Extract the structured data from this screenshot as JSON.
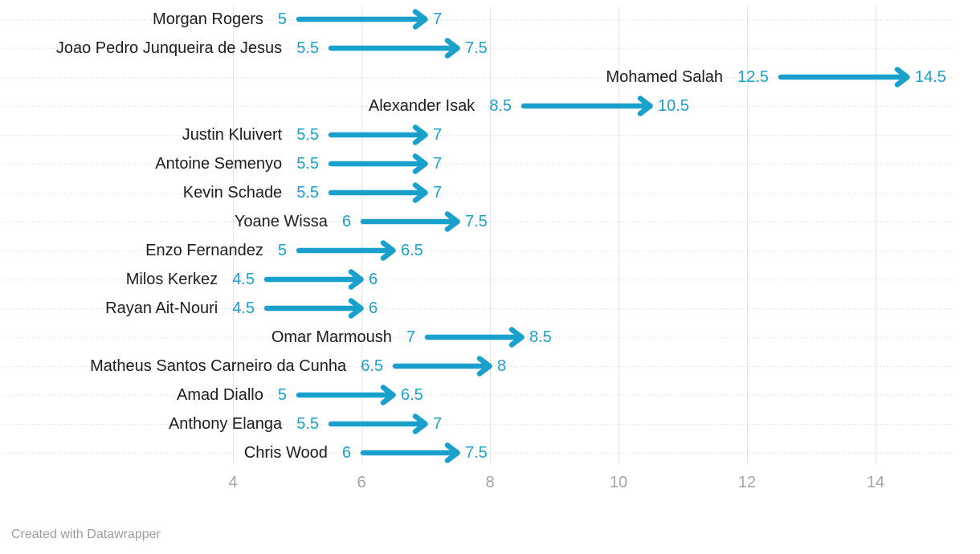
{
  "chart_data": {
    "type": "arrow",
    "title": "",
    "xlabel": "",
    "ylabel": "",
    "rows": [
      {
        "name": "Morgan Rogers",
        "start": 5,
        "end": 7,
        "start_label": "5",
        "end_label": "7"
      },
      {
        "name": "Joao Pedro Junqueira de Jesus",
        "start": 5.5,
        "end": 7.5,
        "start_label": "5.5",
        "end_label": "7.5"
      },
      {
        "name": "Mohamed Salah",
        "start": 12.5,
        "end": 14.5,
        "start_label": "12.5",
        "end_label": "14.5"
      },
      {
        "name": "Alexander Isak",
        "start": 8.5,
        "end": 10.5,
        "start_label": "8.5",
        "end_label": "10.5"
      },
      {
        "name": "Justin Kluivert",
        "start": 5.5,
        "end": 7,
        "start_label": "5.5",
        "end_label": "7"
      },
      {
        "name": "Antoine Semenyo",
        "start": 5.5,
        "end": 7,
        "start_label": "5.5",
        "end_label": "7"
      },
      {
        "name": "Kevin Schade",
        "start": 5.5,
        "end": 7,
        "start_label": "5.5",
        "end_label": "7"
      },
      {
        "name": "Yoane Wissa",
        "start": 6,
        "end": 7.5,
        "start_label": "6",
        "end_label": "7.5"
      },
      {
        "name": "Enzo Fernandez",
        "start": 5,
        "end": 6.5,
        "start_label": "5",
        "end_label": "6.5"
      },
      {
        "name": "Milos Kerkez",
        "start": 4.5,
        "end": 6,
        "start_label": "4.5",
        "end_label": "6"
      },
      {
        "name": "Rayan Ait-Nouri",
        "start": 4.5,
        "end": 6,
        "start_label": "4.5",
        "end_label": "6"
      },
      {
        "name": "Omar Marmoush",
        "start": 7,
        "end": 8.5,
        "start_label": "7",
        "end_label": "8.5"
      },
      {
        "name": "Matheus Santos Carneiro da Cunha",
        "start": 6.5,
        "end": 8,
        "start_label": "6.5",
        "end_label": "8"
      },
      {
        "name": "Amad Diallo",
        "start": 5,
        "end": 6.5,
        "start_label": "5",
        "end_label": "6.5"
      },
      {
        "name": "Anthony Elanga",
        "start": 5.5,
        "end": 7,
        "start_label": "5.5",
        "end_label": "7"
      },
      {
        "name": "Chris Wood",
        "start": 6,
        "end": 7.5,
        "start_label": "6",
        "end_label": "7.5"
      }
    ],
    "axis": {
      "ticks": [
        4,
        6,
        8,
        10,
        12,
        14
      ],
      "tick_labels": [
        "4",
        "6",
        "8",
        "10",
        "12",
        "14"
      ],
      "xlim": [
        3.6,
        15.6
      ],
      "grid": "vertical solid lines at ticks, horizontal dotted guide per row",
      "legend_position": "none"
    }
  },
  "colors": {
    "arrow": "#1AA0CD",
    "value_label": "#1AA0CD",
    "player_name": "#1D1D1D",
    "axis_label": "#A5A5A5",
    "vertical_gridline": "#E2E2E2",
    "dotted_gridline": "#D0D0D0",
    "credit_text": "#9C9C9C"
  },
  "footer": {
    "credit": "Created with Datawrapper"
  }
}
